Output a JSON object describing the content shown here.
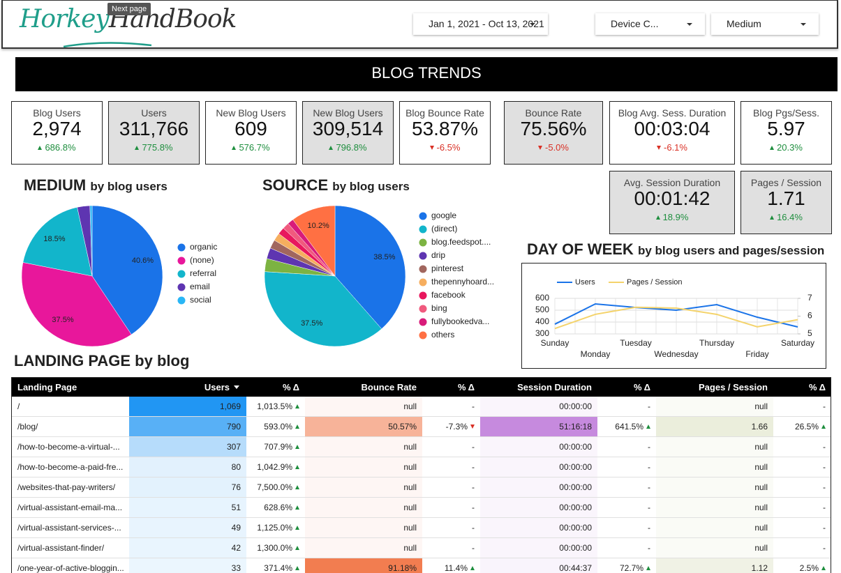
{
  "header": {
    "logo": {
      "part1": "Horkey",
      "part2": "HandBook"
    },
    "tooltip": "Next page",
    "filters": [
      "Jan 1, 2021 - Oct 13, 2021",
      "Device C...",
      "Medium"
    ]
  },
  "banner": "BLOG TRENDS",
  "scorecards": [
    {
      "label": "Blog Users",
      "value": "2,974",
      "delta": "686.8%",
      "shaded": false
    },
    {
      "label": "Users",
      "value": "311,766",
      "delta": "775.8%",
      "shaded": true
    },
    {
      "label": "New Blog Users",
      "value": "609",
      "delta": "576.7%",
      "shaded": false
    },
    {
      "label": "New Blog Users",
      "value": "309,514",
      "delta": "796.8%",
      "shaded": true
    },
    {
      "label": "Blog Bounce Rate",
      "value": "53.87%",
      "delta": "-6.5%",
      "shaded": false
    },
    {
      "label": "Bounce Rate",
      "value": "75.56%",
      "delta": "-5.0%",
      "shaded": true
    },
    {
      "label": "Blog Avg. Sess. Duration",
      "value": "00:03:04",
      "delta": "-6.1%",
      "shaded": false
    },
    {
      "label": "Blog Pgs/Sess.",
      "value": "5.97",
      "delta": "20.3%",
      "shaded": false
    },
    {
      "label": "Avg. Session Duration",
      "value": "00:01:42",
      "delta": "18.9%",
      "shaded": true
    },
    {
      "label": "Pages / Session",
      "value": "1.71",
      "delta": "16.4%",
      "shaded": true
    }
  ],
  "chart_data": [
    {
      "type": "pie",
      "title": "MEDIUM",
      "subtitle": "by blog users",
      "categories": [
        "organic",
        "(none)",
        "referral",
        "email",
        "social"
      ],
      "values": [
        40.6,
        37.5,
        18.5,
        2.9,
        0.5
      ],
      "value_labels": [
        "40.6%",
        "37.5%",
        "18.5%",
        null,
        null
      ],
      "colors": [
        "#1a73e8",
        "#e8179b",
        "#12b5cb",
        "#5e35b1",
        "#29b6f6"
      ]
    },
    {
      "type": "pie",
      "title": "SOURCE",
      "subtitle": "by blog users",
      "categories": [
        "google",
        "(direct)",
        "blog.feedspot....",
        "drip",
        "pinterest",
        "thepennyhoard...",
        "facebook",
        "bing",
        "fullybookedva...",
        "others"
      ],
      "values": [
        38.5,
        37.5,
        3.0,
        2.5,
        2.0,
        1.8,
        1.6,
        1.5,
        1.4,
        10.2
      ],
      "value_labels": [
        "38.5%",
        "37.5%",
        null,
        null,
        null,
        null,
        null,
        null,
        null,
        "10.2%"
      ],
      "colors": [
        "#1a73e8",
        "#12b5cb",
        "#7cb342",
        "#5e35b1",
        "#a1665e",
        "#f6ae5f",
        "#e8175d",
        "#f05a7e",
        "#d81b7a",
        "#ff7043"
      ]
    },
    {
      "type": "line",
      "title": "DAY OF WEEK",
      "subtitle": "by blog users and pages/session",
      "categories": [
        "Sunday",
        "Monday",
        "Tuesday",
        "Wednesday",
        "Thursday",
        "Friday",
        "Saturday"
      ],
      "series": [
        {
          "name": "Users",
          "color": "#1a73e8",
          "values": [
            382,
            553,
            523,
            500,
            547,
            441,
            359
          ]
        },
        {
          "name": "Pages / Session",
          "color": "#f4d36b",
          "axis": "y2",
          "values": [
            5.3,
            6.1,
            6.5,
            6.45,
            6.1,
            5.4,
            5.8
          ]
        }
      ],
      "ylim": [
        300,
        600
      ],
      "yticks": [
        300,
        400,
        500,
        600
      ],
      "y2lim": [
        5,
        7
      ],
      "y2ticks": [
        5,
        6,
        7
      ],
      "grid": true
    }
  ],
  "table": {
    "title": "LANDING PAGE",
    "subtitle": "by blog",
    "columns": [
      "Landing Page",
      "Users",
      "% Δ",
      "Bounce Rate",
      "% Δ",
      "Session Duration",
      "% Δ",
      "Pages / Session",
      "% Δ"
    ],
    "rows": [
      [
        "/",
        "1,069",
        "1,013.5%",
        "null",
        "-",
        "00:00:00",
        "-",
        "null",
        "-"
      ],
      [
        "/blog/",
        "790",
        "593.0%",
        "50.57%",
        "-7.3%",
        "51:16:18",
        "641.5%",
        "1.66",
        "26.5%"
      ],
      [
        "/how-to-become-a-virtual-...",
        "307",
        "707.9%",
        "null",
        "-",
        "00:00:00",
        "-",
        "null",
        "-"
      ],
      [
        "/how-to-become-a-paid-fre...",
        "80",
        "1,042.9%",
        "null",
        "-",
        "00:00:00",
        "-",
        "null",
        "-"
      ],
      [
        "/websites-that-pay-writers/",
        "76",
        "7,500.0%",
        "null",
        "-",
        "00:00:00",
        "-",
        "null",
        "-"
      ],
      [
        "/virtual-assistant-email-ma...",
        "51",
        "628.6%",
        "null",
        "-",
        "00:00:00",
        "-",
        "null",
        "-"
      ],
      [
        "/virtual-assistant-services-...",
        "49",
        "1,125.0%",
        "null",
        "-",
        "00:00:00",
        "-",
        "null",
        "-"
      ],
      [
        "/virtual-assistant-finder/",
        "42",
        "1,300.0%",
        "null",
        "-",
        "00:00:00",
        "-",
        "null",
        "-"
      ],
      [
        "/one-year-of-active-bloggin...",
        "33",
        "371.4%",
        "91.18%",
        "11.4%",
        "00:44:37",
        "72.7%",
        "1.12",
        "2.5%"
      ]
    ]
  }
}
